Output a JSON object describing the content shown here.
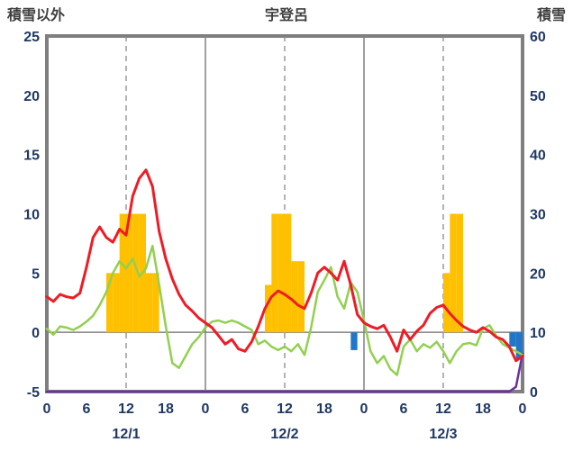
{
  "header": {
    "left_axis_label": "積雪以外",
    "title": "宇登呂",
    "right_axis_label": "積雪"
  },
  "chart_data": {
    "type": "mixed-line-bar",
    "title": "宇登呂",
    "x_unit": "hour",
    "x_range_hours": [
      0,
      72
    ],
    "x_tick_step_hours": 6,
    "x_tick_labels": [
      "0",
      "6",
      "12",
      "18",
      "0",
      "6",
      "12",
      "18",
      "0",
      "6",
      "12",
      "18",
      "0"
    ],
    "date_labels": [
      {
        "label": "12/1",
        "center_hour": 12
      },
      {
        "label": "12/2",
        "center_hour": 36
      },
      {
        "label": "12/3",
        "center_hour": 60
      }
    ],
    "left_axis": {
      "label": "積雪以外",
      "min": -5,
      "max": 25,
      "ticks": [
        25,
        20,
        15,
        10,
        5,
        0,
        -5
      ]
    },
    "right_axis": {
      "label": "積雪",
      "min": 0,
      "max": 60,
      "ticks": [
        60,
        50,
        40,
        30,
        20,
        10,
        0
      ]
    },
    "grid": {
      "day_separator_hours": [
        24,
        48
      ],
      "noon_dashed_hours": [
        12,
        36,
        60
      ],
      "zero_line_left_value": 0
    },
    "colors": {
      "border": "#7F7F7F",
      "gridline": "#808080",
      "axis_text": "#1F3864",
      "header_text": "#3F3F3F",
      "orange_bars": "#FFC000",
      "blue_bars": "#2176C7",
      "red_line": "#EE1C25",
      "green_line": "#92D050",
      "purple_line": "#7030A0"
    },
    "series": [
      {
        "name": "orange-bars",
        "type": "bar",
        "axis": "left",
        "color": "#FFC000",
        "bars": [
          [
            9,
            5
          ],
          [
            10,
            5
          ],
          [
            11,
            10
          ],
          [
            12,
            10
          ],
          [
            13,
            10
          ],
          [
            14,
            10
          ],
          [
            15,
            5
          ],
          [
            16,
            5
          ],
          [
            33,
            4
          ],
          [
            34,
            10
          ],
          [
            35,
            10
          ],
          [
            36,
            10
          ],
          [
            37,
            6
          ],
          [
            38,
            6
          ],
          [
            60,
            5
          ],
          [
            61,
            10
          ],
          [
            62,
            10
          ]
        ]
      },
      {
        "name": "blue-bars",
        "type": "bar",
        "axis": "left",
        "color": "#2176C7",
        "bars": [
          [
            46,
            -1.5
          ],
          [
            70,
            -1.2
          ],
          [
            71,
            -2.3
          ]
        ]
      },
      {
        "name": "purple-line",
        "type": "line",
        "axis": "left",
        "color": "#7030A0",
        "width": 2.5,
        "points": [
          [
            0,
            -5
          ],
          [
            70,
            -5
          ],
          [
            71,
            -4.6
          ],
          [
            72,
            -1.8
          ]
        ]
      },
      {
        "name": "green-line",
        "type": "line",
        "axis": "left",
        "color": "#92D050",
        "width": 2.5,
        "values": [
          0.3,
          -0.2,
          0.5,
          0.4,
          0.2,
          0.5,
          0.9,
          1.4,
          2.3,
          3.4,
          5.0,
          6.0,
          5.4,
          6.2,
          4.7,
          5.4,
          7.3,
          4.0,
          0.5,
          -2.6,
          -3.0,
          -2.0,
          -1.0,
          -0.4,
          0.4,
          0.9,
          1.0,
          0.8,
          1.0,
          0.8,
          0.5,
          0.2,
          -1.0,
          -0.7,
          -1.2,
          -1.5,
          -1.2,
          -1.6,
          -1.0,
          -1.9,
          0.4,
          3.4,
          4.4,
          5.5,
          3.0,
          2.0,
          4.2,
          3.4,
          1.0,
          -1.6,
          -2.6,
          -2.0,
          -3.1,
          -3.6,
          -1.2,
          -0.6,
          -1.6,
          -1.0,
          -1.3,
          -0.8,
          -1.6,
          -2.6,
          -1.6,
          -1.0,
          -0.9,
          -1.1,
          0.3,
          0.6,
          -0.3,
          -1.0,
          -1.3,
          -1.6,
          -1.9
        ]
      },
      {
        "name": "red-line",
        "type": "line",
        "axis": "left",
        "color": "#EE1C25",
        "width": 3,
        "values": [
          3.0,
          2.6,
          3.2,
          3.0,
          2.9,
          3.3,
          5.5,
          8.0,
          8.9,
          8.0,
          7.6,
          8.7,
          8.2,
          11.5,
          13.0,
          13.7,
          12.3,
          8.5,
          6.2,
          4.5,
          3.2,
          2.3,
          1.8,
          1.2,
          0.8,
          0.4,
          -0.3,
          -1.0,
          -0.6,
          -1.4,
          -1.6,
          -0.8,
          0.5,
          2.0,
          3.0,
          3.5,
          3.2,
          2.8,
          2.3,
          2.0,
          3.3,
          5.0,
          5.5,
          5.0,
          4.4,
          6.0,
          4.0,
          1.5,
          0.8,
          0.5,
          0.3,
          0.6,
          -0.4,
          -1.6,
          0.2,
          -0.6,
          0.1,
          0.6,
          1.6,
          2.1,
          2.3,
          1.6,
          1.0,
          0.5,
          0.2,
          0.0,
          0.4,
          0.1,
          -0.4,
          -0.6,
          -1.2,
          -2.4,
          -2.0
        ]
      }
    ]
  }
}
